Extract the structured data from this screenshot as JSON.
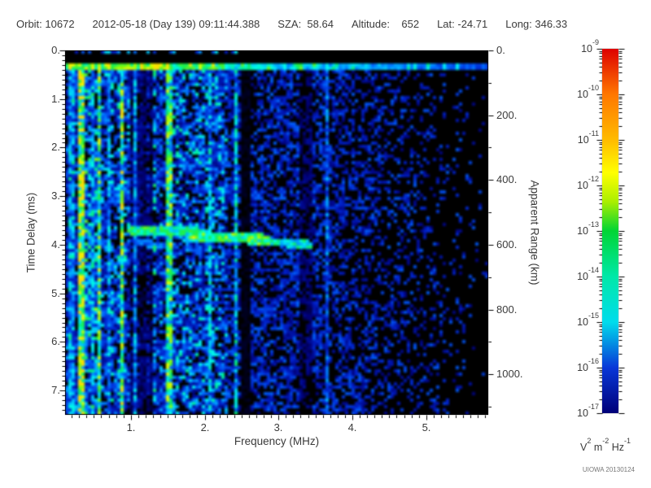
{
  "header": {
    "segments": [
      "Orbit: 10672",
      "2012-05-18 (Day 139) 09:11:44.388",
      "SZA:  58.64",
      "Altitude:    652",
      "Lat: -24.71",
      "Long: 346.33"
    ]
  },
  "footer": {
    "credit": "UIOWA 20130124"
  },
  "chart_data": {
    "type": "heatmap",
    "title": "",
    "xlabel": "Frequency (MHz)",
    "ylabel_left": "Time Delay (ms)",
    "ylabel_right": "Apparent Range (km)",
    "x_range_mhz": [
      0.11,
      5.84
    ],
    "y_range_ms": [
      0.0,
      7.5
    ],
    "range_km_max": 1125,
    "x_tick_values": [
      1,
      2,
      3,
      4,
      5
    ],
    "x_tick_labels": [
      "1.",
      "2.",
      "3.",
      "4.",
      "5."
    ],
    "x_minor_step": 0.1,
    "y_tick_values": [
      0,
      1,
      2,
      3,
      4,
      5,
      6,
      7
    ],
    "y_tick_labels": [
      "0.",
      "1.",
      "2.",
      "3.",
      "4.",
      "5.",
      "6.",
      "7."
    ],
    "y_minor_step": 0.1,
    "range_tick_values": [
      0,
      200,
      400,
      600,
      800,
      1000
    ],
    "range_tick_labels": [
      "0.",
      "200.",
      "400.",
      "600.",
      "800.",
      "1000."
    ],
    "range_minor_step": 100,
    "colorbar": {
      "base": "10",
      "exponents": [
        "-9",
        "-10",
        "-11",
        "-12",
        "-13",
        "-14",
        "-15",
        "-16",
        "-17"
      ],
      "units_parts": [
        [
          "V",
          "2"
        ],
        [
          " m",
          "-2"
        ],
        [
          " Hz",
          "-1"
        ]
      ],
      "gradient_stops": [
        [
          0,
          "#dd0000"
        ],
        [
          0.125,
          "#ff7700"
        ],
        [
          0.25,
          "#ffbb00"
        ],
        [
          0.34,
          "#ffff00"
        ],
        [
          0.42,
          "#aaee00"
        ],
        [
          0.5,
          "#00d535"
        ],
        [
          0.625,
          "#00e8a8"
        ],
        [
          0.75,
          "#00dcec"
        ],
        [
          0.875,
          "#0837d8"
        ],
        [
          1,
          "#000078"
        ]
      ]
    },
    "data_colormap": [
      [
        0,
        "#000000"
      ],
      [
        0.14,
        "#000077"
      ],
      [
        0.3,
        "#0022cc"
      ],
      [
        0.42,
        "#0066ff"
      ],
      [
        0.52,
        "#00bbff"
      ],
      [
        0.62,
        "#00ffee"
      ],
      [
        0.7,
        "#00f08a"
      ],
      [
        0.78,
        "#22ee44"
      ],
      [
        0.86,
        "#99ff00"
      ],
      [
        0.93,
        "#eeff00"
      ],
      [
        1,
        "#ffdd00"
      ]
    ],
    "features": {
      "noise_seed": 20130124,
      "black_top_ms": 0.235,
      "surface_line_ms": [
        0.245,
        0.375
      ],
      "stripes": [
        {
          "f": 0.2,
          "w": 0.05,
          "int": 0.52
        },
        {
          "f": 0.33,
          "w": 0.05,
          "int": 0.95
        },
        {
          "f": 0.42,
          "w": 0.04,
          "int": 0.62
        },
        {
          "f": 0.5,
          "w": 0.04,
          "int": 0.55
        },
        {
          "f": 0.57,
          "w": 0.05,
          "int": 0.8
        },
        {
          "f": 0.69,
          "w": 0.04,
          "int": 0.55
        },
        {
          "f": 0.9,
          "w": 0.05,
          "int": 0.85
        },
        {
          "f": 1.06,
          "w": 0.04,
          "int": 0.52
        },
        {
          "f": 1.52,
          "w": 0.05,
          "int": 0.8
        },
        {
          "f": 2.06,
          "w": 0.04,
          "int": 0.58
        },
        {
          "f": 2.42,
          "w": 0.04,
          "int": 0.62
        },
        {
          "f": 3.67,
          "w": 0.04,
          "int": 0.45
        }
      ],
      "dark_columns": [
        {
          "f0": 0.97,
          "f1": 1.3,
          "mult": 0.45
        },
        {
          "f0": 2.47,
          "f1": 2.62,
          "mult": 0.12
        },
        {
          "f0": 3.3,
          "f1": 3.44,
          "mult": 0.5
        }
      ],
      "echo_trace": [
        {
          "f0": 0.95,
          "f1": 1.92,
          "ms0": 3.68,
          "ms1": 3.74,
          "th": 0.1,
          "int": 0.72
        },
        {
          "f0": 1.92,
          "f1": 2.88,
          "ms0": 3.82,
          "ms1": 3.9,
          "th": 0.11,
          "int": 0.78
        },
        {
          "f0": 2.88,
          "f1": 3.45,
          "ms0": 3.95,
          "ms1": 4.0,
          "th": 0.08,
          "int": 0.66
        },
        {
          "f0": 1.02,
          "f1": 1.62,
          "ms0": 3.96,
          "ms1": 4.02,
          "th": 0.07,
          "int": 0.45
        }
      ],
      "hotspot": {
        "f": 1.85,
        "ms": 3.86,
        "int": 0.97
      },
      "density": {
        "band1_f": 2.3,
        "band2_f": 3.6,
        "p1": 0.8,
        "p2": 0.6,
        "p3": 0.55,
        "fade_end": 5.95
      }
    }
  }
}
